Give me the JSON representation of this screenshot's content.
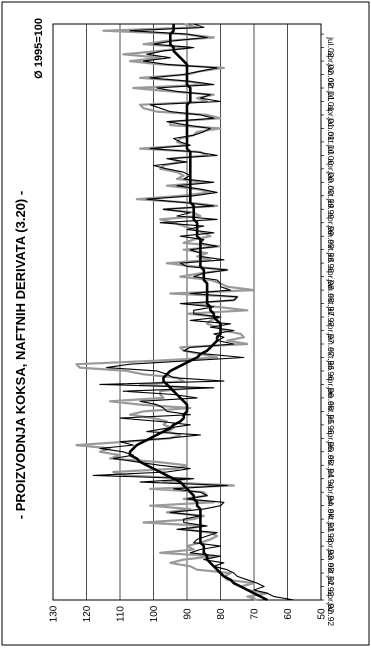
{
  "chart_data": {
    "type": "line",
    "title": "- PROIZVODNJA KOKSA, NAFTNIH DERIVATA (3.20) -",
    "base_note": "Ø 1995=100",
    "x_tick_labels": [
      "jan.92",
      "apr.92",
      "jul.92",
      "okt.92",
      "jan.93",
      "apr.93",
      "jul.93",
      "okt.93",
      "jan.94",
      "apr.94",
      "jul.94",
      "okt.94",
      "jan.95",
      "apr.95",
      "jul.95",
      "okt.95",
      "jan.96",
      "apr.96",
      "jul.96",
      "okt.96",
      "jan.97",
      "apr.97",
      "jul.97",
      "okt.97",
      "jan.98",
      "apr.98",
      "jul.98",
      "okt.98",
      "jan.99",
      "apr.99",
      "jul.99",
      "okt.99",
      "jan.00",
      "apr.00",
      "jul.00",
      "okt.00",
      "jan.01",
      "apr.01",
      "jul.01",
      "okt.01",
      "jan.02",
      "apr.02",
      "jul.02"
    ],
    "y_ticks": [
      50,
      60,
      70,
      80,
      90,
      100,
      110,
      120,
      130
    ],
    "ylim": [
      50,
      130
    ],
    "grid": true,
    "series": [
      {
        "color": "#9a9a9a",
        "values": [
          69,
          72,
          66,
          72,
          74,
          70,
          78,
          79,
          77,
          87,
          89,
          95,
          91,
          82,
          98,
          88,
          90,
          86,
          83,
          81,
          83,
          91,
          85,
          103,
          88,
          85,
          96,
          89,
          101,
          82,
          91,
          84,
          85,
          101,
          76,
          97,
          89,
          108,
          112,
          93,
          90,
          99,
          113,
          110,
          116,
          113,
          123,
          108,
          95,
          92,
          96,
          94,
          97,
          96,
          100,
          107,
          103,
          89,
          104,
          113,
          97,
          98,
          98,
          88,
          104,
          91,
          93,
          103,
          108,
          122,
          123,
          100,
          81,
          86,
          91,
          92,
          72,
          78,
          73,
          74,
          79,
          81,
          84,
          83,
          80,
          90,
          72,
          81,
          89,
          76,
          75,
          95,
          70,
          78,
          80,
          83,
          92,
          86,
          78,
          88,
          96,
          83,
          87,
          84,
          91,
          80,
          91,
          88,
          83,
          85,
          88,
          91,
          94,
          98,
          86,
          88,
          97,
          81,
          90,
          105,
          92,
          83,
          87,
          96,
          84,
          93,
          91,
          93,
          98,
          97,
          92,
          95,
          84,
          86,
          104,
          90,
          93,
          92,
          88,
          87,
          80,
          95,
          95,
          80,
          84,
          99,
          103,
          104,
          84,
          87,
          82,
          95,
          106,
          84,
          90,
          104,
          90,
          86,
          79,
          98,
          107,
          98,
          109,
          98,
          89,
          103,
          96,
          82,
          91,
          115,
          87,
          91
        ]
      },
      {
        "color": "#000000",
        "values": [
          58,
          64,
          66,
          70,
          67,
          69,
          72,
          75,
          76,
          78,
          82,
          79,
          85,
          80,
          89,
          86,
          80,
          88,
          87,
          84,
          81,
          93,
          84,
          91,
          91,
          86,
          95,
          85,
          80,
          79,
          90,
          84,
          86,
          94,
          78,
          104,
          88,
          118,
          96,
          89,
          98,
          105,
          112,
          106,
          109,
          116,
          106,
          110,
          96,
          86,
          102,
          96,
          89,
          98,
          110,
          89,
          96,
          97,
          99,
          104,
          87,
          94,
          109,
          82,
          116,
          79,
          94,
          96,
          99,
          114,
          107,
          90,
          73,
          84,
          91,
          89,
          76,
          81,
          79,
          82,
          76,
          83,
          77,
          89,
          80,
          88,
          88,
          82,
          92,
          76,
          75,
          89,
          77,
          80,
          80,
          81,
          88,
          85,
          78,
          90,
          92,
          79,
          86,
          86,
          89,
          81,
          86,
          85,
          92,
          82,
          90,
          85,
          98,
          81,
          93,
          89,
          97,
          82,
          91,
          102,
          88,
          81,
          86,
          93,
          82,
          91,
          89,
          91,
          96,
          100,
          90,
          96,
          81,
          87,
          101,
          89,
          92,
          94,
          88,
          85,
          83,
          90,
          96,
          82,
          86,
          95,
          98,
          101,
          80,
          86,
          83,
          93,
          99,
          82,
          89,
          101,
          91,
          86,
          81,
          96,
          103,
          95,
          102,
          97,
          88,
          100,
          94,
          84,
          90,
          107,
          85,
          88
        ]
      },
      {
        "color": "#000000",
        "values": [
          66,
          68,
          70,
          72,
          74,
          76,
          77,
          79,
          80,
          81,
          82,
          83,
          84,
          84,
          85,
          85,
          85,
          86,
          86,
          86,
          86,
          86,
          86,
          86,
          86,
          86,
          86,
          86,
          87,
          87,
          88,
          88,
          89,
          90,
          91,
          92,
          94,
          96,
          98,
          100,
          102,
          104,
          105,
          107,
          107,
          106,
          105,
          103,
          101,
          99,
          97,
          95,
          94,
          92,
          91,
          91,
          90,
          90,
          90,
          91,
          92,
          93,
          94,
          95,
          96,
          97,
          97,
          96,
          95,
          93,
          91,
          89,
          87,
          86,
          84,
          83,
          82,
          81,
          81,
          80,
          80,
          80,
          80,
          81,
          82,
          82,
          83,
          83,
          84,
          84,
          84,
          84,
          84,
          84,
          84,
          85,
          85,
          85,
          85,
          86,
          86,
          86,
          86,
          86,
          86,
          86,
          86,
          86,
          87,
          87,
          87,
          87,
          87,
          88,
          88,
          88,
          88,
          88,
          89,
          89,
          89,
          89,
          89,
          89,
          89,
          89,
          89,
          89,
          89,
          89,
          89,
          89,
          89,
          89,
          90,
          90,
          90,
          90,
          90,
          90,
          90,
          90,
          90,
          90,
          90,
          90,
          90,
          90,
          89,
          89,
          89,
          89,
          89,
          90,
          90,
          90,
          90,
          90,
          90,
          90,
          91,
          92,
          93,
          94,
          94,
          95,
          95,
          95,
          95,
          94,
          94,
          94
        ]
      }
    ]
  }
}
